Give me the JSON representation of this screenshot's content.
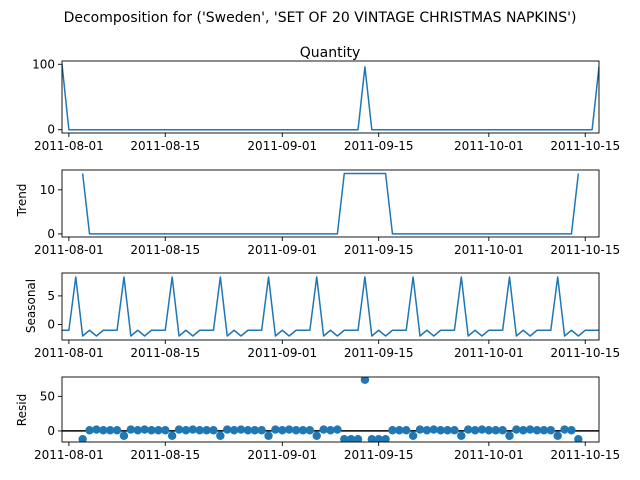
{
  "figure_title": "Decomposition for ('Sweden', 'SET OF 20 VINTAGE CHRISTMAS NAPKINS')",
  "line_color": "#1f77b4",
  "chart_data": [
    {
      "type": "line",
      "title": "Quantity",
      "ylabel": "",
      "xlim": [
        "2011-07-31",
        "2011-10-17"
      ],
      "ylim": [
        -5,
        105
      ],
      "yticks": [
        0,
        100
      ],
      "xticks": [
        "2011-08-01",
        "2011-08-15",
        "2011-09-01",
        "2011-09-15",
        "2011-10-01",
        "2011-10-15"
      ],
      "grid": false,
      "x": [
        "2011-07-31",
        "2011-08-01",
        "2011-09-12",
        "2011-09-13",
        "2011-09-14",
        "2011-10-15",
        "2011-10-16",
        "2011-10-17"
      ],
      "y": [
        100,
        0,
        0,
        96,
        0,
        0,
        0,
        96
      ]
    },
    {
      "type": "line",
      "title": "",
      "ylabel": "Trend",
      "xlim": [
        "2011-07-31",
        "2011-10-17"
      ],
      "ylim": [
        -0.7,
        14.5
      ],
      "yticks": [
        0,
        10
      ],
      "xticks": [
        "2011-08-01",
        "2011-08-15",
        "2011-09-01",
        "2011-09-15",
        "2011-10-01",
        "2011-10-15"
      ],
      "grid": false,
      "x": [
        "2011-08-03",
        "2011-08-04",
        "2011-09-09",
        "2011-09-10",
        "2011-09-16",
        "2011-09-17",
        "2011-10-13",
        "2011-10-14"
      ],
      "y": [
        13.7,
        0,
        0,
        13.7,
        13.7,
        0,
        0,
        13.7
      ]
    },
    {
      "type": "line",
      "title": "",
      "ylabel": "Seasonal",
      "xlim": [
        "2011-07-31",
        "2011-10-17"
      ],
      "ylim": [
        -2.7,
        9.0
      ],
      "yticks": [
        0,
        5
      ],
      "xticks": [
        "2011-08-01",
        "2011-08-15",
        "2011-09-01",
        "2011-09-15",
        "2011-10-01",
        "2011-10-15"
      ],
      "grid": false,
      "period_pattern": [
        8.3,
        -2.0,
        -1.0,
        -2.0,
        -1.0,
        -1.0,
        -1.0
      ],
      "pattern_start": "2011-08-02",
      "x_range": [
        "2011-07-31",
        "2011-10-17"
      ]
    },
    {
      "type": "scatter",
      "title": "",
      "ylabel": "Resid",
      "xlim": [
        "2011-07-31",
        "2011-10-17"
      ],
      "ylim": [
        -16,
        78
      ],
      "yticks": [
        0,
        50
      ],
      "xticks": [
        "2011-08-01",
        "2011-08-15",
        "2011-09-01",
        "2011-09-15",
        "2011-10-01",
        "2011-10-15"
      ],
      "grid": false,
      "zero_line": true,
      "x_start": "2011-08-03",
      "y": [
        -12,
        1,
        2,
        1,
        1,
        1,
        -7,
        2,
        1,
        2,
        1,
        1,
        1,
        -7,
        2,
        1,
        2,
        1,
        1,
        1,
        -7,
        2,
        1,
        2,
        1,
        1,
        1,
        -7,
        2,
        1,
        2,
        1,
        1,
        1,
        -7,
        2,
        1,
        2,
        -12,
        -12,
        -12,
        74,
        -12,
        -12,
        -12,
        1,
        1,
        1,
        -7,
        2,
        1,
        2,
        1,
        1,
        1,
        -7,
        2,
        1,
        2,
        1,
        1,
        1,
        -7,
        2,
        1,
        2,
        1,
        1,
        1,
        -7,
        2,
        1,
        -12
      ]
    }
  ]
}
